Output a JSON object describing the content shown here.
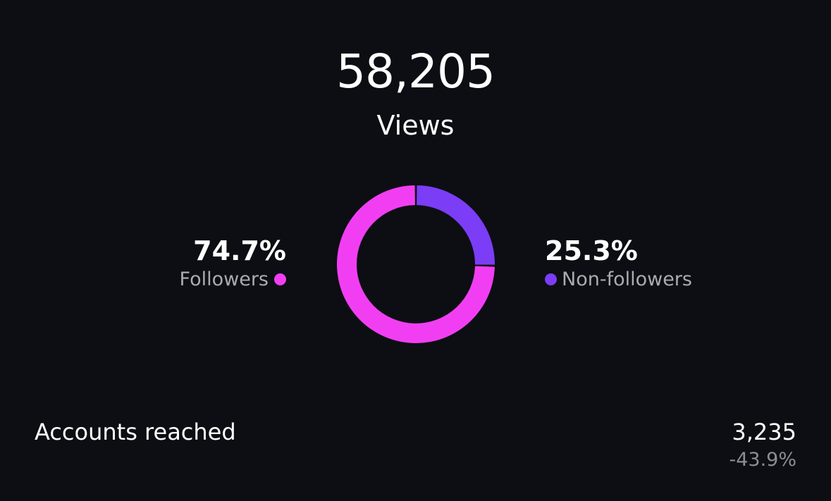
{
  "views": {
    "value": "58,205",
    "label": "Views"
  },
  "colors": {
    "followers": "#f23ef2",
    "non_followers": "#7b3df5",
    "background": "#0c0e13"
  },
  "chart_data": {
    "type": "pie",
    "variant": "donut",
    "slices": [
      {
        "label": "Followers",
        "value": 74.7,
        "display": "74.7%",
        "color": "#f23ef2"
      },
      {
        "label": "Non-followers",
        "value": 25.3,
        "display": "25.3%",
        "color": "#7b3df5"
      }
    ]
  },
  "accounts_reached": {
    "label": "Accounts reached",
    "value": "3,235",
    "change": "-43.9%"
  }
}
